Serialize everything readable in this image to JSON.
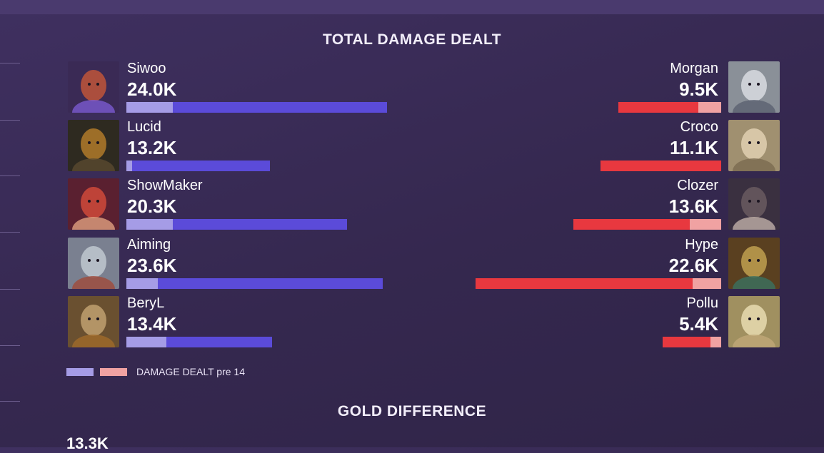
{
  "titles": {
    "damage": "TOTAL DAMAGE DEALT",
    "gold": "GOLD DIFFERENCE"
  },
  "legend": {
    "label": "DAMAGE DEALT pre 14",
    "blue_pre_color": "#a59ce6",
    "red_pre_color": "#f0a2a2"
  },
  "gold_partial_value": "13.3K",
  "colors": {
    "blue_team": "#5b4bd9",
    "blue_pre": "#a59ce6",
    "red_team": "#e8383f",
    "red_pre": "#f0a2a2"
  },
  "chart_data": {
    "type": "bar",
    "title": "TOTAL DAMAGE DEALT",
    "units": "damage",
    "series": [
      {
        "team": "blue",
        "players": [
          {
            "name": "Siwoo",
            "label": "24.0K",
            "total": 24000,
            "pre14": 4300
          },
          {
            "name": "Lucid",
            "label": "13.2K",
            "total": 13200,
            "pre14": 500
          },
          {
            "name": "ShowMaker",
            "label": "20.3K",
            "total": 20300,
            "pre14": 4300
          },
          {
            "name": "Aiming",
            "label": "23.6K",
            "total": 23600,
            "pre14": 2900
          },
          {
            "name": "BeryL",
            "label": "13.4K",
            "total": 13400,
            "pre14": 3700
          }
        ]
      },
      {
        "team": "red",
        "players": [
          {
            "name": "Morgan",
            "label": "9.5K",
            "total": 9500,
            "pre14": 2100
          },
          {
            "name": "Croco",
            "label": "11.1K",
            "total": 11100,
            "pre14": 0
          },
          {
            "name": "Clozer",
            "label": "13.6K",
            "total": 13600,
            "pre14": 2900
          },
          {
            "name": "Hype",
            "label": "22.6K",
            "total": 22600,
            "pre14": 2600
          },
          {
            "name": "Pollu",
            "label": "5.4K",
            "total": 5400,
            "pre14": 1000
          }
        ]
      }
    ],
    "legend": "bottom-left"
  }
}
